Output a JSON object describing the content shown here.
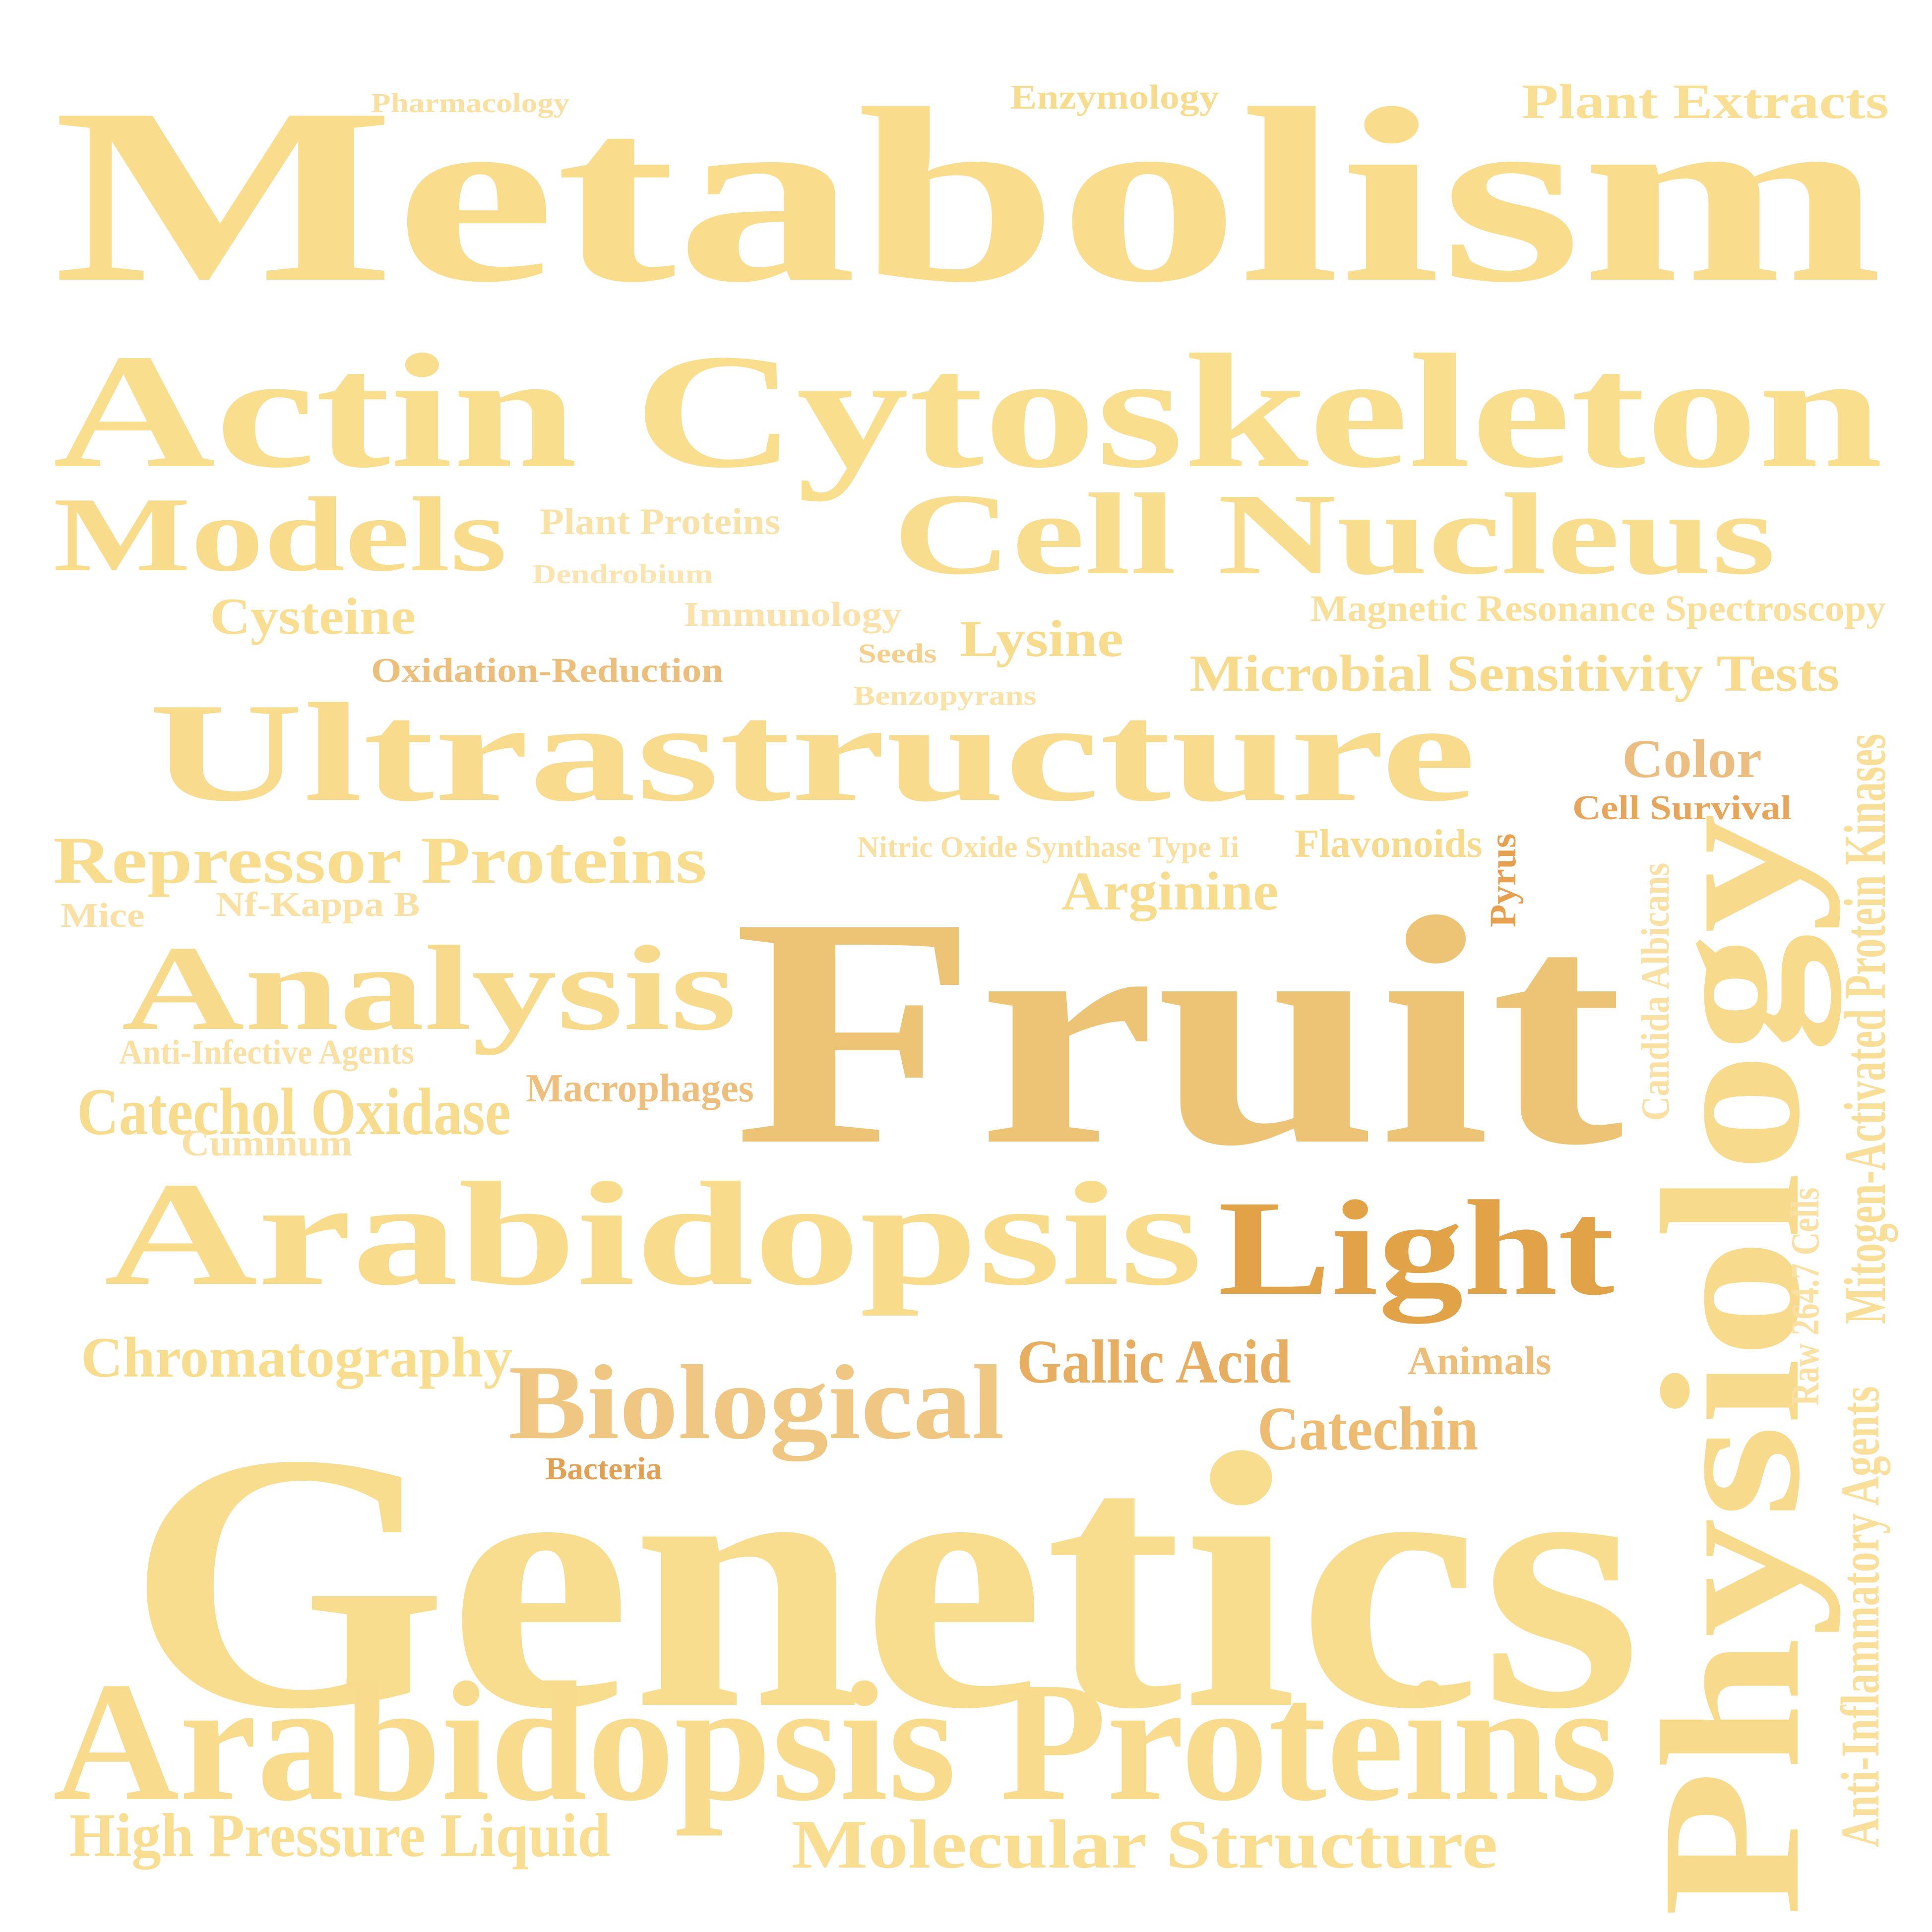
{
  "words": [
    {
      "text": "Metabolism",
      "color": "#f9dc8c"
    },
    {
      "text": "Pharmacology",
      "color": "#f9e0a0"
    },
    {
      "text": "Enzymology",
      "color": "#f8dc8e"
    },
    {
      "text": "Plant Extracts",
      "color": "#f9df94"
    },
    {
      "text": "Actin Cytoskeleton",
      "color": "#f9de8e"
    },
    {
      "text": "Models",
      "color": "#f8dc8c"
    },
    {
      "text": "Plant Proteins",
      "color": "#f9e2a8"
    },
    {
      "text": "Cell Nucleus",
      "color": "#f9dd8e"
    },
    {
      "text": "Dendrobium",
      "color": "#fae4b0"
    },
    {
      "text": "Cysteine",
      "color": "#f9de92"
    },
    {
      "text": "Immunology",
      "color": "#fae2aa"
    },
    {
      "text": "Magnetic Resonance Spectroscopy",
      "color": "#f9df98"
    },
    {
      "text": "Lysine",
      "color": "#f8dc8e"
    },
    {
      "text": "Seeds",
      "color": "#f5d08c"
    },
    {
      "text": "Oxidation-Reduction",
      "color": "#edbe7a"
    },
    {
      "text": "Benzopyrans",
      "color": "#fae2a6"
    },
    {
      "text": "Microbial Sensitivity Tests",
      "color": "#f8da8c"
    },
    {
      "text": "Ultrastructure",
      "color": "#f8db8c"
    },
    {
      "text": "Color",
      "color": "#ecbd80"
    },
    {
      "text": "Cell Survival",
      "color": "#e7a55c"
    },
    {
      "text": "Repressor Proteins",
      "color": "#f9dd8e"
    },
    {
      "text": "Nitric Oxide Synthase Type Ii",
      "color": "#fae0a0"
    },
    {
      "text": "Flavonoids",
      "color": "#f8da8c"
    },
    {
      "text": "Mice",
      "color": "#fae0a2"
    },
    {
      "text": "Nf-Kappa B",
      "color": "#fae0a2"
    },
    {
      "text": "Arginine",
      "color": "#f8dc8e"
    },
    {
      "text": "Pyrus",
      "color": "#e6a050"
    },
    {
      "text": "Analysis",
      "color": "#f7da8c"
    },
    {
      "text": "Fruit",
      "color": "#edc475"
    },
    {
      "text": "Candida Albicans",
      "color": "#fae0a2"
    },
    {
      "text": "Physiology",
      "color": "#f8da8c"
    },
    {
      "text": "Mitogen-Activated Protein Kinases",
      "color": "#f9de98"
    },
    {
      "text": "Anti-Infective Agents",
      "color": "#fae0a2"
    },
    {
      "text": "Macrophages",
      "color": "#edbe7c"
    },
    {
      "text": "Catechol Oxidase",
      "color": "#f8dc8e"
    },
    {
      "text": "Cuminum",
      "color": "#fae0a2"
    },
    {
      "text": "Arabidopsis",
      "color": "#f8dc8c"
    },
    {
      "text": "Light",
      "color": "#e2a248"
    },
    {
      "text": "Raw 264.7 Cells",
      "color": "#fae0a2"
    },
    {
      "text": "Chromatography",
      "color": "#f9dd8e"
    },
    {
      "text": "Biological",
      "color": "#efc682"
    },
    {
      "text": "Gallic Acid",
      "color": "#e7ae62"
    },
    {
      "text": "Animals",
      "color": "#edbe7a"
    },
    {
      "text": "Catechin",
      "color": "#edbc72"
    },
    {
      "text": "Bacteria",
      "color": "#e2a050"
    },
    {
      "text": "Anti-Inflammatory Agents",
      "color": "#f9df9a"
    },
    {
      "text": "Genetics",
      "color": "#f9dd8e"
    },
    {
      "text": "Arabidopsis Proteins",
      "color": "#f8db8c"
    },
    {
      "text": "High Pressure Liquid",
      "color": "#f9dd90"
    },
    {
      "text": "Molecular Structure",
      "color": "#f9dd90"
    }
  ]
}
